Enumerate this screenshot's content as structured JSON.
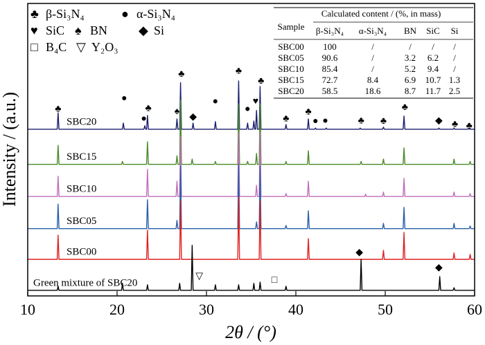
{
  "chart_data": {
    "type": "line",
    "x_label": "2θ / (°)",
    "y_label": "Intensity / (a.u.)",
    "xlim": [
      10,
      60
    ],
    "xticks": [
      10,
      20,
      30,
      40,
      50,
      60
    ],
    "ylim": [
      0,
      100
    ],
    "grid": false,
    "series": [
      {
        "name": "SBC20",
        "color": "#1b1f6e",
        "x": [
          10,
          13.3,
          13.4,
          13.5,
          20.6,
          20.7,
          20.8,
          23.0,
          23.1,
          23.2,
          23.3,
          23.4,
          23.5,
          26.6,
          26.7,
          26.8,
          27.0,
          27.1,
          27.2,
          28.4,
          28.5,
          28.6,
          30.9,
          31.0,
          31.1,
          33.5,
          33.6,
          33.7,
          34.5,
          34.6,
          34.7,
          35.2,
          35.3,
          35.4,
          35.5,
          35.6,
          35.7,
          35.9,
          36.0,
          36.1,
          38.8,
          38.9,
          39.0,
          41.3,
          41.4,
          41.5,
          42.1,
          42.2,
          42.3,
          43.3,
          43.4,
          43.5,
          47.1,
          47.2,
          47.3,
          49.7,
          49.8,
          49.9,
          52.0,
          52.1,
          52.2,
          55.9,
          56.0,
          56.1,
          57.6,
          57.7,
          57.8,
          59.3,
          59.4,
          59.5,
          60
        ],
        "values": [
          57,
          57,
          62.6,
          57,
          57,
          59.1,
          57,
          57,
          58.2,
          57,
          57,
          61.7,
          57,
          57,
          60.5,
          57,
          57,
          72.9,
          57,
          57,
          59.1,
          57,
          57,
          59.6,
          57,
          57,
          73.5,
          57,
          57,
          59.1,
          57,
          57,
          59.8,
          57,
          57,
          63.4,
          57,
          57,
          71.6,
          57,
          57,
          58.6,
          57,
          57,
          60.5,
          57,
          57,
          57.4,
          57,
          57,
          57.4,
          57,
          57,
          57.4,
          57,
          57,
          57.7,
          57,
          57,
          61.5,
          57,
          57,
          57.4,
          57,
          57,
          57.4,
          57,
          57,
          57.2,
          57,
          57
        ]
      },
      {
        "name": "SBC15",
        "color": "#4a8a2a",
        "x": [
          10,
          13.3,
          13.4,
          13.5,
          20.5,
          20.6,
          20.7,
          23.3,
          23.4,
          23.5,
          26.6,
          26.7,
          26.8,
          27.0,
          27.1,
          27.2,
          28.3,
          28.4,
          28.5,
          30.9,
          31.0,
          31.1,
          33.5,
          33.6,
          33.7,
          34.5,
          34.6,
          34.7,
          35.5,
          35.6,
          35.7,
          35.9,
          36.0,
          36.1,
          38.8,
          38.9,
          39.0,
          41.3,
          41.4,
          41.5,
          47.2,
          47.3,
          47.4,
          49.7,
          49.8,
          49.9,
          52.0,
          52.1,
          52.2,
          57.6,
          57.7,
          57.8,
          59.4,
          59.5,
          59.6,
          60
        ],
        "values": [
          45,
          45,
          51.5,
          45,
          45,
          46,
          45,
          45,
          52.7,
          45,
          45,
          47.9,
          45,
          45,
          66.9,
          45,
          45,
          46.8,
          45,
          45,
          46,
          45,
          45,
          65.7,
          45,
          45,
          46,
          45,
          45,
          48.7,
          45,
          45,
          65.7,
          45,
          45,
          46,
          45,
          45,
          49.6,
          45,
          45,
          46,
          45,
          45,
          46.8,
          45,
          45,
          50.6,
          45,
          45,
          46.8,
          45,
          45,
          46,
          45,
          45
        ]
      },
      {
        "name": "SBC10",
        "color": "#c06ebb",
        "x": [
          10,
          13.3,
          13.4,
          13.5,
          23.3,
          23.4,
          23.5,
          26.6,
          26.7,
          26.8,
          27.0,
          27.1,
          27.2,
          33.5,
          33.6,
          33.7,
          35.5,
          35.6,
          35.7,
          35.9,
          36.0,
          36.1,
          38.8,
          38.9,
          39.0,
          41.3,
          41.4,
          41.5,
          47.7,
          47.8,
          47.9,
          49.7,
          49.8,
          49.9,
          52.0,
          52.1,
          52.2,
          57.6,
          57.7,
          57.8,
          59.4,
          59.5,
          59.6,
          60
        ],
        "values": [
          34,
          34,
          40.9,
          34,
          34,
          43.3,
          34,
          34,
          39.2,
          34,
          34,
          54.6,
          34,
          34,
          55.8,
          34,
          34,
          37.8,
          34,
          34,
          55.8,
          34,
          34,
          35,
          34,
          34,
          39.2,
          34,
          34,
          34.8,
          34,
          34,
          35.5,
          34,
          34,
          40.2,
          34,
          34,
          35.5,
          34,
          34,
          35,
          34,
          34
        ]
      },
      {
        "name": "SBC05",
        "color": "#2a5fa8",
        "x": [
          10,
          13.3,
          13.4,
          13.5,
          23.3,
          23.4,
          23.5,
          26.6,
          26.7,
          26.8,
          27.0,
          27.1,
          27.2,
          33.5,
          33.6,
          33.7,
          35.5,
          35.6,
          35.7,
          35.9,
          36.0,
          36.1,
          38.8,
          38.9,
          39.0,
          41.3,
          41.4,
          41.5,
          49.7,
          49.8,
          49.9,
          52.0,
          52.1,
          52.2,
          57.6,
          57.7,
          57.8,
          59.4,
          59.5,
          59.6,
          60
        ],
        "values": [
          23,
          23,
          31.4,
          23,
          23,
          32.9,
          23,
          23,
          25.8,
          23,
          23,
          44.4,
          23,
          23,
          44.9,
          23,
          23,
          25.3,
          23,
          23,
          44.4,
          23,
          23,
          24.1,
          23,
          23,
          29.1,
          23,
          23,
          24.8,
          23,
          23,
          30.3,
          23,
          23,
          24.8,
          23,
          23,
          23.9,
          23,
          23
        ]
      },
      {
        "name": "SBC00",
        "color": "#e02020",
        "x": [
          10,
          13.3,
          13.4,
          13.5,
          23.3,
          23.4,
          23.5,
          27.0,
          27.1,
          27.2,
          33.5,
          33.6,
          33.7,
          35.9,
          36.0,
          36.1,
          41.3,
          41.4,
          41.5,
          49.7,
          49.8,
          49.9,
          52.0,
          52.1,
          52.2,
          57.6,
          57.7,
          57.8,
          59.4,
          59.5,
          59.6,
          60
        ],
        "values": [
          12.5,
          12.5,
          20.8,
          12.5,
          12.5,
          22.5,
          12.5,
          12.5,
          32.6,
          12.5,
          12.5,
          33.8,
          12.5,
          12.5,
          32.6,
          12.5,
          12.5,
          19.6,
          12.5,
          12.5,
          15.6,
          12.5,
          12.5,
          21.7,
          12.5,
          12.5,
          14.7,
          12.5,
          12.5,
          14.2,
          12.5,
          12.5
        ]
      },
      {
        "name": "Green mixture of SBC20",
        "color": "#000000",
        "x": [
          10,
          13.3,
          13.4,
          13.5,
          20.5,
          20.6,
          20.7,
          23.3,
          23.4,
          23.5,
          26.9,
          27.0,
          27.1,
          28.3,
          28.4,
          28.5,
          30.9,
          31.0,
          31.1,
          33.5,
          33.6,
          33.7,
          35.2,
          35.3,
          35.4,
          35.9,
          36.0,
          36.1,
          38.8,
          38.9,
          39.0,
          47.2,
          47.3,
          47.4,
          56.0,
          56.1,
          56.2,
          57.6,
          57.7,
          57.8,
          60
        ],
        "values": [
          1.9,
          1.9,
          3.3,
          1.9,
          1.9,
          4.3,
          1.9,
          1.9,
          3.8,
          1.9,
          1.9,
          4.3,
          1.9,
          1.9,
          17.3,
          1.9,
          1.9,
          3.8,
          1.9,
          1.9,
          3.8,
          1.9,
          1.9,
          4.3,
          1.9,
          1.9,
          4.7,
          1.9,
          1.9,
          3.3,
          1.9,
          1.9,
          12.5,
          1.9,
          1.9,
          6.6,
          1.9,
          1.9,
          2.8,
          1.9,
          1.9
        ]
      }
    ],
    "annotations": [
      {
        "text": "♣",
        "x": 13.4,
        "y": 63.8
      },
      {
        "text": "●",
        "x": 20.8,
        "y": 67.4
      },
      {
        "text": "●",
        "x": 23.0,
        "y": 60.5
      },
      {
        "text": "♣",
        "x": 23.5,
        "y": 64
      },
      {
        "text": "♠",
        "x": 26.7,
        "y": 62.9
      },
      {
        "text": "♣",
        "x": 27.2,
        "y": 75.7
      },
      {
        "text": "◆",
        "x": 28.5,
        "y": 61
      },
      {
        "text": "●",
        "x": 31.0,
        "y": 66.4
      },
      {
        "text": "♣",
        "x": 33.6,
        "y": 76.8
      },
      {
        "text": "●",
        "x": 34.6,
        "y": 63.8
      },
      {
        "text": "♥",
        "x": 35.5,
        "y": 66.4
      },
      {
        "text": "♣",
        "x": 36.1,
        "y": 73.3
      },
      {
        "text": "♣",
        "x": 38.9,
        "y": 60.5
      },
      {
        "text": "♣",
        "x": 41.4,
        "y": 62.8
      },
      {
        "text": "●",
        "x": 42.2,
        "y": 59.6
      },
      {
        "text": "●",
        "x": 43.3,
        "y": 59.8
      },
      {
        "text": "♣",
        "x": 47.3,
        "y": 59.8
      },
      {
        "text": "♣",
        "x": 49.8,
        "y": 59.6
      },
      {
        "text": "♣",
        "x": 52.2,
        "y": 64.4
      },
      {
        "text": "◆",
        "x": 56.0,
        "y": 59.8
      },
      {
        "text": "♣",
        "x": 57.8,
        "y": 58.6
      },
      {
        "text": "♣",
        "x": 59.4,
        "y": 58
      },
      {
        "text": "▽",
        "x": 29.2,
        "y": 6.6
      },
      {
        "text": "□",
        "x": 37.6,
        "y": 5.2
      },
      {
        "text": "◆",
        "x": 47.1,
        "y": 14.7
      },
      {
        "text": "◆",
        "x": 56.0,
        "y": 9.5
      }
    ]
  },
  "phase_legend": [
    {
      "symbol": "♣",
      "label": "β-Si₃N₄"
    },
    {
      "symbol": "●",
      "label": "α-Si₃N₄"
    },
    {
      "symbol": "♥",
      "label": "SiC"
    },
    {
      "symbol": "♠",
      "label": "BN"
    },
    {
      "symbol": "◆",
      "label": "Si"
    },
    {
      "symbol": "□",
      "label": "B₄C"
    },
    {
      "symbol": "▽",
      "label": "Y₂O₃"
    }
  ],
  "table": {
    "title": "Calculated content / (%, in mass)",
    "columns": [
      "Sample",
      "β-Si₃N₄",
      "α-Si₃N₄",
      "BN",
      "SiC",
      "Si"
    ],
    "rows": [
      [
        "SBC00",
        100,
        "/",
        "/",
        "/",
        "/"
      ],
      [
        "SBC05",
        90.6,
        "/",
        3.2,
        6.2,
        "/"
      ],
      [
        "SBC10",
        85.4,
        "/",
        5.2,
        9.4,
        "/"
      ],
      [
        "SBC15",
        72.7,
        8.4,
        6.9,
        10.7,
        1.3
      ],
      [
        "SBC20",
        58.5,
        18.6,
        8.7,
        11.7,
        2.5
      ]
    ]
  }
}
